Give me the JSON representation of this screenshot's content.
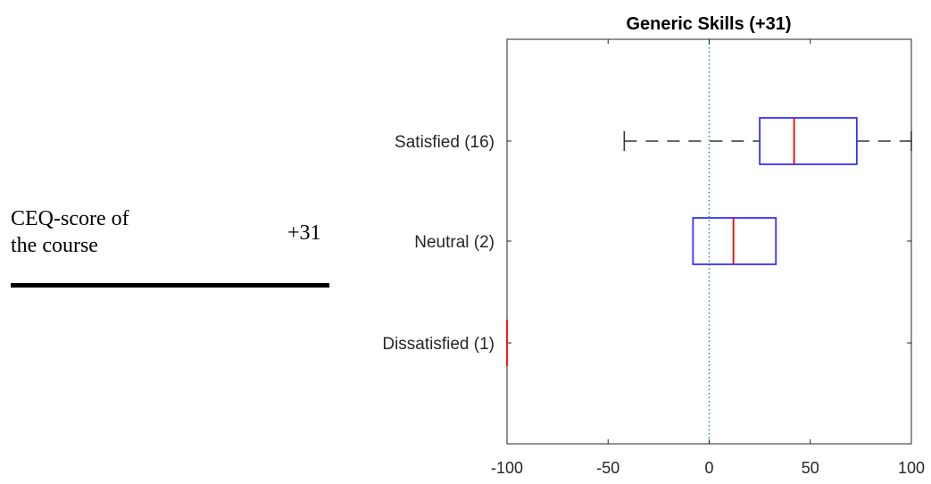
{
  "summary": {
    "label_line1": "CEQ-score of",
    "label_line2": "the course",
    "score": "+31"
  },
  "chart_data": {
    "type": "boxplot",
    "orientation": "horizontal",
    "title": "Generic Skills (+31)",
    "xlabel": "",
    "ylabel": "",
    "xlim": [
      -100,
      100
    ],
    "xticks": [
      -100,
      -50,
      0,
      50,
      100
    ],
    "reference_line": {
      "x": 0,
      "style": "dotted",
      "color": "#2a8fc9"
    },
    "grid": false,
    "categories": [
      "Satisfied (16)",
      "Neutral (2)",
      "Dissatisfied (1)"
    ],
    "boxes": [
      {
        "category": "Satisfied (16)",
        "whisker_low": -42,
        "q1": 25,
        "median": 42,
        "q3": 73,
        "whisker_high": 100
      },
      {
        "category": "Neutral (2)",
        "whisker_low": -8,
        "q1": -8,
        "median": 12,
        "q3": 33,
        "whisker_high": 33
      },
      {
        "category": "Dissatisfied (1)",
        "whisker_low": -100,
        "q1": -100,
        "median": -100,
        "q3": -100,
        "whisker_high": -100
      }
    ],
    "colors": {
      "box": "#3333ff",
      "median": "#ff0000",
      "whisker": "#333333",
      "axis": "#262626"
    }
  }
}
